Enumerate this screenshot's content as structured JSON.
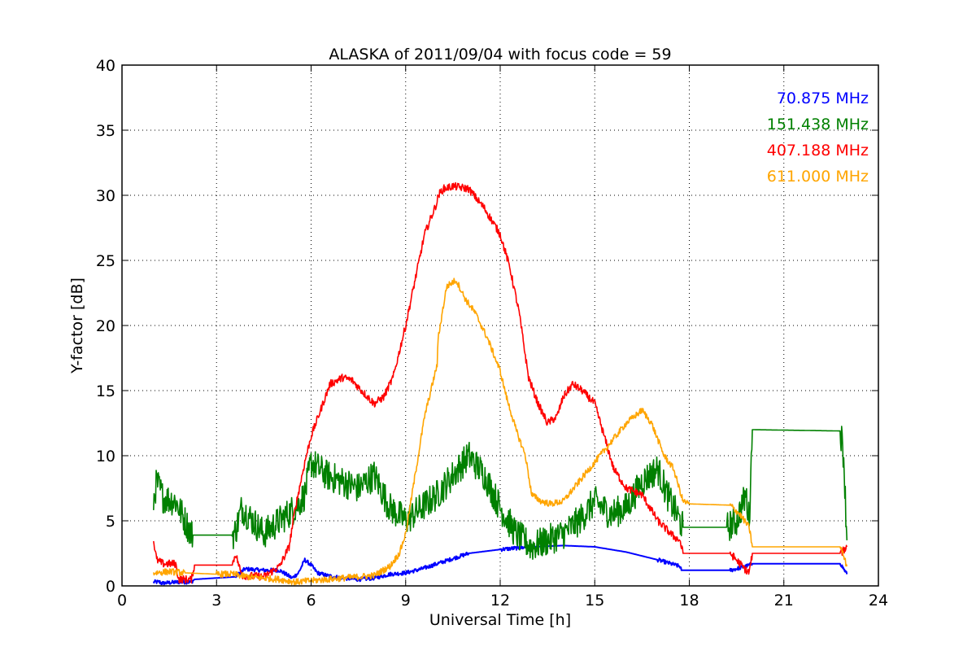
{
  "chart_data": {
    "type": "line",
    "title": "ALASKA of 2011/09/04 with focus code = 59",
    "xlabel": "Universal Time [h]",
    "ylabel": "Y-factor [dB]",
    "xlim": [
      0,
      24
    ],
    "ylim": [
      0,
      40
    ],
    "xticks": [
      0,
      3,
      6,
      9,
      12,
      15,
      18,
      21,
      24
    ],
    "yticks": [
      0,
      5,
      10,
      15,
      20,
      25,
      30,
      35,
      40
    ],
    "grid": true,
    "legend_placement": "top-right",
    "series": [
      {
        "name": "70.875 MHz",
        "color": "#0000ff",
        "width": 2,
        "noise": 0.15,
        "x": [
          1.0,
          1.2,
          1.25,
          1.8,
          2.2,
          2.3,
          3.6,
          3.9,
          4.5,
          5.0,
          5.4,
          5.6,
          5.8,
          6.0,
          6.2,
          6.5,
          7.0,
          7.5,
          8.0,
          8.5,
          9.0,
          9.5,
          10.0,
          10.5,
          11.0,
          12.0,
          12.5,
          13.0,
          14.0,
          15.0,
          16.0,
          17.0,
          17.7,
          17.75,
          19.3,
          19.8,
          20.0,
          22.8,
          23.0
        ],
        "y": [
          0.3,
          0.3,
          0.2,
          0.3,
          0.3,
          0.5,
          0.7,
          1.3,
          1.2,
          1.2,
          0.6,
          1.0,
          2.0,
          1.6,
          1.0,
          0.8,
          0.6,
          0.5,
          0.6,
          0.9,
          1.0,
          1.3,
          1.7,
          2.1,
          2.5,
          2.8,
          2.9,
          3.0,
          3.1,
          3.0,
          2.6,
          2.0,
          1.5,
          1.2,
          1.2,
          1.5,
          1.7,
          1.7,
          0.9
        ]
      },
      {
        "name": "151.438 MHz",
        "color": "#008000",
        "width": 1.6,
        "noise": 1.2,
        "x": [
          1.0,
          1.1,
          1.3,
          1.7,
          1.8,
          2.2,
          2.25,
          3.5,
          3.6,
          3.8,
          4.5,
          5.0,
          5.5,
          5.8,
          6.0,
          6.5,
          7.0,
          7.5,
          8.0,
          8.5,
          9.0,
          9.5,
          10.0,
          10.5,
          11.0,
          11.5,
          12.0,
          12.5,
          13.0,
          13.5,
          14.0,
          14.5,
          15.0,
          15.5,
          16.0,
          16.5,
          17.0,
          17.3,
          17.5,
          17.7,
          17.8,
          19.2,
          19.5,
          19.8,
          19.9,
          20.0,
          22.8,
          22.9,
          23.0
        ],
        "y": [
          6.5,
          8.0,
          6.8,
          6.5,
          6.0,
          4.0,
          3.9,
          3.9,
          4.2,
          6.0,
          4.0,
          5.0,
          6.0,
          7.0,
          9.5,
          8.5,
          8.0,
          7.5,
          8.5,
          6.0,
          5.0,
          6.0,
          7.0,
          8.5,
          10.0,
          8.5,
          6.0,
          4.0,
          3.0,
          3.5,
          4.0,
          5.0,
          6.5,
          5.5,
          6.0,
          8.0,
          9.0,
          7.0,
          6.0,
          5.0,
          4.5,
          4.5,
          5.0,
          7.0,
          5.0,
          12.0,
          11.9,
          10.0,
          3.5
        ]
      },
      {
        "name": "407.188 MHz",
        "color": "#ff0000",
        "width": 1.6,
        "noise": 0.3,
        "x": [
          1.0,
          1.1,
          1.3,
          1.7,
          1.8,
          2.2,
          2.3,
          3.5,
          3.6,
          3.8,
          4.5,
          5.0,
          5.3,
          5.5,
          5.8,
          6.0,
          6.3,
          6.6,
          7.0,
          7.3,
          7.6,
          8.0,
          8.3,
          8.6,
          9.0,
          9.3,
          9.6,
          10.0,
          10.03,
          10.2,
          10.5,
          11.0,
          11.5,
          12.0,
          12.3,
          12.6,
          12.9,
          13.2,
          13.5,
          13.8,
          14.0,
          14.3,
          14.6,
          15.0,
          15.3,
          15.6,
          16.0,
          16.5,
          17.0,
          17.5,
          17.7,
          17.8,
          19.3,
          19.8,
          19.9,
          20.0,
          22.8,
          23.0
        ],
        "y": [
          3.5,
          2.0,
          1.7,
          1.7,
          0.5,
          0.5,
          1.6,
          1.6,
          2.5,
          0.8,
          0.7,
          1.5,
          3.0,
          6.0,
          9.5,
          11.5,
          13.5,
          15.5,
          16.0,
          15.8,
          15.0,
          14.0,
          14.5,
          16.0,
          20.0,
          23.5,
          27.0,
          29.5,
          30.0,
          30.5,
          30.7,
          30.5,
          29.0,
          27.0,
          24.5,
          21.0,
          16.0,
          14.0,
          12.5,
          13.0,
          14.5,
          15.5,
          15.0,
          14.0,
          11.5,
          9.0,
          7.5,
          7.0,
          5.0,
          3.8,
          3.5,
          2.5,
          2.5,
          1.2,
          1.0,
          2.5,
          2.5,
          3.0
        ]
      },
      {
        "name": "611.000 MHz",
        "color": "#ffa500",
        "width": 1.6,
        "noise": 0.25,
        "x": [
          1.0,
          1.5,
          2.0,
          3.0,
          3.5,
          4.0,
          4.5,
          5.0,
          5.5,
          6.0,
          6.5,
          7.0,
          7.5,
          8.0,
          8.5,
          8.8,
          9.0,
          9.2,
          9.4,
          9.6,
          9.8,
          10.0,
          10.03,
          10.3,
          10.6,
          10.9,
          11.2,
          11.6,
          12.0,
          12.2,
          12.5,
          12.8,
          13.0,
          13.3,
          13.6,
          14.0,
          14.5,
          15.0,
          15.5,
          16.0,
          16.5,
          16.8,
          17.2,
          17.5,
          17.8,
          18.0,
          19.3,
          19.6,
          19.9,
          20.0,
          22.8,
          23.0
        ],
        "y": [
          1.0,
          1.1,
          1.0,
          0.9,
          0.9,
          0.7,
          0.6,
          0.5,
          0.3,
          0.4,
          0.5,
          0.6,
          0.7,
          0.8,
          1.5,
          2.5,
          4.0,
          7.0,
          10.0,
          13.0,
          15.0,
          17.0,
          19.0,
          23.0,
          23.5,
          22.0,
          21.0,
          19.0,
          16.5,
          14.5,
          12.0,
          10.0,
          7.0,
          6.5,
          6.3,
          6.5,
          8.0,
          9.5,
          11.0,
          12.5,
          13.5,
          12.5,
          10.0,
          9.0,
          6.5,
          6.3,
          6.2,
          5.5,
          4.5,
          3.0,
          3.0,
          1.5
        ]
      }
    ]
  }
}
